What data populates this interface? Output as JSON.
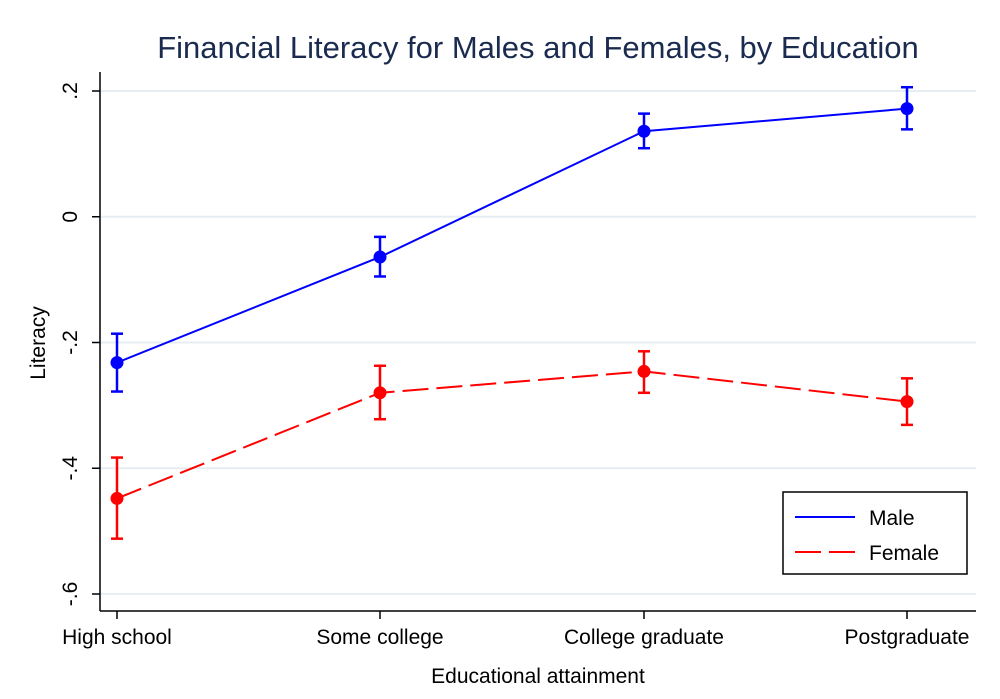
{
  "chart_data": {
    "type": "line",
    "title": "Financial Literacy for Males and Females, by Education",
    "xlabel": "Educational attainment",
    "ylabel": "Literacy",
    "categories": [
      "High school",
      "Some college",
      "College graduate",
      "Postgraduate"
    ],
    "ylim": [
      -0.6,
      0.2
    ],
    "yticks": [
      -0.6,
      -0.4,
      -0.2,
      0,
      0.2
    ],
    "ytick_labels": [
      "-.6",
      "-.4",
      "-.2",
      "0",
      ".2"
    ],
    "grid": true,
    "legend_position": "bottom-right",
    "series": [
      {
        "name": "Male",
        "color": "#0000ff",
        "line_style": "solid",
        "values": [
          -0.232,
          -0.064,
          0.136,
          0.172
        ],
        "ci_low": [
          -0.278,
          -0.095,
          0.109,
          0.139
        ],
        "ci_high": [
          -0.186,
          -0.032,
          0.164,
          0.206
        ]
      },
      {
        "name": "Female",
        "color": "#ff0000",
        "line_style": "dashed",
        "values": [
          -0.448,
          -0.28,
          -0.246,
          -0.294
        ],
        "ci_low": [
          -0.512,
          -0.322,
          -0.28,
          -0.331
        ],
        "ci_high": [
          -0.383,
          -0.237,
          -0.214,
          -0.257
        ]
      }
    ]
  }
}
